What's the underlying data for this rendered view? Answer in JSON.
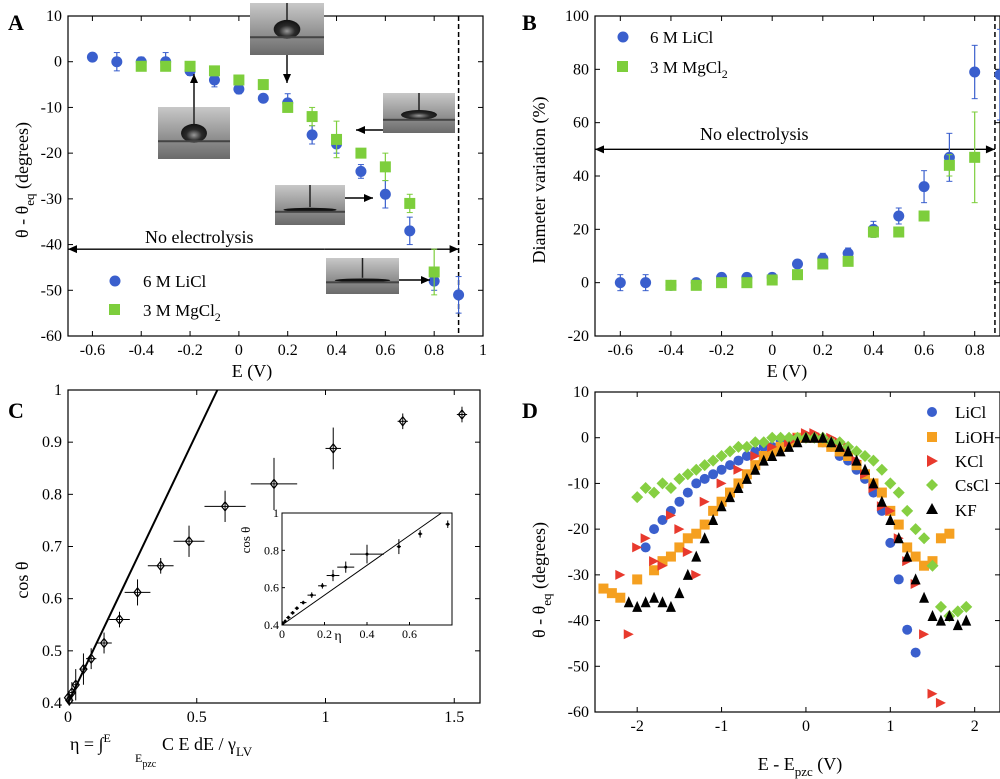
{
  "panels": {
    "A": {
      "letter": "A",
      "xlabel": "E (V)",
      "ylabel": "θ - θ",
      "ylabel_sub": "eq",
      "ylabel_unit": " (degrees)",
      "annotation": "No electrolysis",
      "legend": [
        "6 M LiCl",
        "3 M MgCl",
        "2"
      ]
    },
    "B": {
      "letter": "B",
      "xlabel": "E (V)",
      "ylabel": "Diameter variation (%)",
      "annotation": "No electrolysis",
      "legend": [
        "6 M LiCl",
        "3 M MgCl",
        "2"
      ]
    },
    "C": {
      "letter": "C",
      "xlabel": "η = ∫",
      "xlabel_sup": "E",
      "xlabel_sub": "E",
      "xlabel_subsub": "pzc",
      "xlabel_rest": " C E dE / γ",
      "xlabel_lv": "LV",
      "ylabel": "cos θ",
      "inset_xlabel": "η",
      "inset_ylabel": "cos θ"
    },
    "D": {
      "letter": "D",
      "xlabel": "E - E",
      "xlabel_sub": "pzc",
      "xlabel_unit": " (V)",
      "ylabel": "θ - θ",
      "ylabel_sub": "eq",
      "ylabel_unit": " (degrees)",
      "legend": [
        "LiCl",
        "LiOH",
        "KCl",
        "CsCl",
        "KF"
      ]
    }
  },
  "colors": {
    "blue": "#3a5fcd",
    "green": "#7dce3c",
    "orange": "#f5a020",
    "red": "#e8392d",
    "cscl": "#86cf42",
    "black": "#000000"
  },
  "chart_data": [
    {
      "id": "A",
      "type": "scatter",
      "xlabel": "E (V)",
      "ylabel": "θ - θeq (degrees)",
      "xlim": [
        -0.7,
        1
      ],
      "ylim": [
        -60,
        10
      ],
      "xticks": [
        "-0.6",
        "-0.4",
        "-0.2",
        "0",
        "0.2",
        "0.4",
        "0.6",
        "0.8",
        "1"
      ],
      "yticks": [
        "10",
        "0",
        "-10",
        "-20",
        "-30",
        "-40",
        "-50",
        "-60"
      ],
      "vline": 0.9,
      "hline_arrow": {
        "y": -41,
        "x": [
          -0.7,
          0.9
        ],
        "label": "No electrolysis"
      },
      "series": [
        {
          "name": "6 M LiCl",
          "marker": "circle",
          "color": "blue",
          "x": [
            -0.6,
            -0.5,
            -0.4,
            -0.3,
            -0.2,
            -0.1,
            0,
            0.1,
            0.2,
            0.3,
            0.4,
            0.5,
            0.6,
            0.7,
            0.8,
            0.9
          ],
          "y": [
            1,
            0,
            0,
            0,
            -2,
            -4,
            -6,
            -8,
            -9,
            -16,
            -18,
            -24,
            -29,
            -37,
            -48,
            -51
          ],
          "err": [
            0.5,
            2,
            1,
            2,
            1,
            1.5,
            1,
            0.5,
            2,
            2,
            2,
            1.5,
            3,
            3,
            2,
            4
          ]
        },
        {
          "name": "3 M MgCl2",
          "marker": "square",
          "color": "green",
          "x": [
            -0.4,
            -0.3,
            -0.2,
            -0.1,
            0,
            0.1,
            0.2,
            0.3,
            0.4,
            0.5,
            0.6,
            0.7,
            0.8
          ],
          "y": [
            -1,
            -1,
            -1,
            -2,
            -4,
            -5,
            -10,
            -12,
            -17,
            -20,
            -23,
            -31,
            -46
          ],
          "err": [
            0.5,
            0.5,
            0.5,
            0.5,
            0.5,
            0.5,
            1,
            2,
            4,
            1,
            3,
            2,
            5
          ]
        }
      ]
    },
    {
      "id": "B",
      "type": "scatter",
      "xlabel": "E (V)",
      "ylabel": "Diameter variation (%)",
      "xlim": [
        -0.7,
        0.9
      ],
      "ylim": [
        -20,
        100
      ],
      "xticks": [
        "-0.6",
        "-0.4",
        "-0.2",
        "0",
        "0.2",
        "0.4",
        "0.6",
        "0.8"
      ],
      "yticks": [
        "100",
        "80",
        "60",
        "40",
        "20",
        "0",
        "-20"
      ],
      "vline": 0.88,
      "hline_arrow": {
        "y": 50,
        "x": [
          -0.7,
          0.88
        ],
        "label": "No electrolysis"
      },
      "series": [
        {
          "name": "6 M LiCl",
          "marker": "circle",
          "color": "blue",
          "x": [
            -0.6,
            -0.5,
            -0.4,
            -0.3,
            -0.2,
            -0.1,
            0,
            0.1,
            0.2,
            0.3,
            0.4,
            0.5,
            0.6,
            0.7,
            0.8,
            0.9
          ],
          "y": [
            0,
            0,
            -1,
            0,
            2,
            2,
            2,
            7,
            9,
            11,
            20,
            25,
            36,
            47,
            79,
            78
          ],
          "err": [
            3,
            3,
            1,
            1,
            1,
            1,
            1,
            1,
            2,
            2,
            3,
            3,
            6,
            9,
            10,
            17
          ]
        },
        {
          "name": "3 M MgCl2",
          "marker": "square",
          "color": "green",
          "x": [
            -0.4,
            -0.3,
            -0.2,
            -0.1,
            0,
            0.1,
            0.2,
            0.3,
            0.4,
            0.5,
            0.6,
            0.7,
            0.8
          ],
          "y": [
            -1,
            -1,
            0,
            0,
            1,
            3,
            7,
            8,
            19,
            19,
            25,
            44,
            47
          ],
          "err": [
            0.5,
            0.5,
            0.5,
            0.5,
            0.5,
            0.5,
            1,
            1,
            2,
            1,
            1,
            4,
            17
          ]
        }
      ]
    },
    {
      "id": "C",
      "type": "scatter",
      "xlabel": "η = ∫ C E dE / γLV",
      "ylabel": "cos θ",
      "xlim": [
        0,
        1.6
      ],
      "ylim": [
        0.4,
        1
      ],
      "xticks": [
        "0",
        "0.5",
        "1",
        "1.5"
      ],
      "yticks": [
        "1",
        "0.9",
        "0.8",
        "0.7",
        "0.6",
        "0.5",
        "0.4"
      ],
      "line": {
        "x": [
          0,
          0.58
        ],
        "y": [
          0.4,
          1
        ]
      },
      "series": [
        {
          "name": "data",
          "marker": "diamond-open",
          "color": "black",
          "x": [
            0,
            0.005,
            0.015,
            0.03,
            0.06,
            0.09,
            0.14,
            0.2,
            0.27,
            0.36,
            0.47,
            0.61,
            0.8,
            1.03,
            1.3,
            1.53
          ],
          "y": [
            0.41,
            0.405,
            0.42,
            0.435,
            0.465,
            0.485,
            0.515,
            0.56,
            0.612,
            0.663,
            0.71,
            0.777,
            0.82,
            0.888,
            0.94,
            0.953
          ],
          "xerr": [
            0.005,
            0.005,
            0.01,
            0.01,
            0.015,
            0.02,
            0.03,
            0.04,
            0.05,
            0.05,
            0.06,
            0.08,
            0.09,
            0.03,
            0.02,
            0.02
          ],
          "yerr": [
            0.01,
            0.01,
            0.02,
            0.03,
            0.03,
            0.02,
            0.02,
            0.015,
            0.025,
            0.015,
            0.03,
            0.03,
            0.05,
            0.04,
            0.015,
            0.015
          ]
        }
      ],
      "inset": {
        "xlim": [
          0,
          0.8
        ],
        "ylim": [
          0.4,
          1
        ],
        "xticks": [
          "0",
          "0.2",
          "0.4",
          "0.6"
        ],
        "yticks": [
          "1",
          "0.8",
          "0.6",
          "0.4"
        ],
        "line": {
          "x": [
            0,
            0.75
          ],
          "y": [
            0.4,
            1
          ]
        },
        "x": [
          0.005,
          0.015,
          0.03,
          0.05,
          0.07,
          0.1,
          0.14,
          0.19,
          0.24,
          0.3,
          0.4,
          0.55,
          0.65,
          0.78
        ],
        "y": [
          0.41,
          0.42,
          0.44,
          0.465,
          0.49,
          0.52,
          0.56,
          0.61,
          0.665,
          0.71,
          0.78,
          0.82,
          0.888,
          0.94
        ],
        "xerr": [
          0.005,
          0.005,
          0.01,
          0.01,
          0.01,
          0.015,
          0.02,
          0.02,
          0.03,
          0.04,
          0.08,
          0.01,
          0.01,
          0.01
        ],
        "yerr": [
          0.01,
          0.01,
          0.01,
          0.01,
          0.01,
          0.01,
          0.015,
          0.015,
          0.03,
          0.03,
          0.05,
          0.04,
          0.02,
          0.02
        ]
      }
    },
    {
      "id": "D",
      "type": "scatter",
      "xlabel": "E - Epzc (V)",
      "ylabel": "θ - θeq (degrees)",
      "xlim": [
        -2.5,
        2.3
      ],
      "ylim": [
        -60,
        10
      ],
      "xticks": [
        "-2",
        "-1",
        "0",
        "1",
        "2"
      ],
      "yticks": [
        "10",
        "0",
        "-10",
        "-20",
        "-30",
        "-40",
        "-50",
        "-60"
      ],
      "series": [
        {
          "name": "LiCl",
          "marker": "circle",
          "color": "blue",
          "x": [
            -1.9,
            -1.8,
            -1.7,
            -1.6,
            -1.5,
            -1.4,
            -1.3,
            -1.2,
            -1.1,
            -1.0,
            -0.9,
            -0.8,
            -0.7,
            -0.6,
            -0.5,
            -0.4,
            -0.3,
            -0.2,
            -0.1,
            0,
            0.1,
            0.2,
            0.3,
            0.4,
            0.5,
            0.6,
            0.7,
            0.8,
            0.9,
            1.0,
            1.1,
            1.2,
            1.3
          ],
          "y": [
            -24,
            -20,
            -18,
            -16,
            -14,
            -12,
            -10,
            -9,
            -8,
            -7,
            -6,
            -5,
            -4,
            -3,
            -2,
            -2,
            -1,
            -1,
            0,
            0,
            0,
            -1,
            -2,
            -4,
            -5,
            -7,
            -9,
            -12,
            -16,
            -23,
            -31,
            -42,
            -47
          ]
        },
        {
          "name": "LiOH",
          "marker": "square",
          "color": "orange",
          "x": [
            -2.4,
            -2.3,
            -2.2,
            -2.0,
            -1.8,
            -1.7,
            -1.6,
            -1.5,
            -1.4,
            -1.3,
            -1.2,
            -1.1,
            -1.0,
            -0.9,
            -0.8,
            -0.7,
            -0.6,
            -0.5,
            -0.4,
            -0.3,
            -0.2,
            -0.1,
            0,
            0.1,
            0.2,
            0.3,
            0.4,
            0.5,
            0.6,
            0.7,
            0.8,
            0.9,
            1.0,
            1.1,
            1.2,
            1.3,
            1.4,
            1.5,
            1.6,
            1.7
          ],
          "y": [
            -33,
            -34,
            -35,
            -31,
            -29,
            -27,
            -26,
            -24,
            -22,
            -21,
            -19,
            -16,
            -14,
            -12,
            -10,
            -8,
            -6,
            -4,
            -3,
            -2,
            -1,
            0,
            0,
            0,
            -1,
            -2,
            -3,
            -4,
            -6,
            -8,
            -10,
            -12,
            -16,
            -19,
            -24,
            -26,
            -28,
            -27,
            -22,
            -21
          ]
        },
        {
          "name": "KCl",
          "marker": "triangle-right",
          "color": "red",
          "x": [
            -2.2,
            -2.1,
            -2.0,
            -1.9,
            -1.8,
            -1.7,
            -1.6,
            -1.5,
            -1.4,
            -1.3,
            -1.2,
            -1.0,
            -0.8,
            -0.6,
            -0.4,
            -0.2,
            -0.1,
            0,
            0.1,
            0.2,
            0.3,
            0.4,
            0.5,
            0.6,
            0.7,
            0.8,
            0.9,
            1.0,
            1.1,
            1.2,
            1.3,
            1.4,
            1.5,
            1.6
          ],
          "y": [
            -30,
            -43,
            -24,
            -22,
            -27,
            -28,
            -17,
            -20,
            -25,
            -30,
            -14,
            -10,
            -7,
            -4,
            -2,
            -1,
            0,
            1,
            1,
            0,
            0,
            -1,
            -2,
            -5,
            -8,
            -11,
            -15,
            -16,
            -22,
            -27,
            -32,
            -43,
            -56,
            -58
          ]
        },
        {
          "name": "CsCl",
          "marker": "diamond",
          "color": "cscl",
          "x": [
            -2.0,
            -1.9,
            -1.8,
            -1.7,
            -1.6,
            -1.5,
            -1.4,
            -1.3,
            -1.2,
            -1.1,
            -1.0,
            -0.9,
            -0.8,
            -0.7,
            -0.6,
            -0.5,
            -0.4,
            -0.3,
            -0.2,
            -0.1,
            0,
            0.1,
            0.2,
            0.3,
            0.4,
            0.5,
            0.6,
            0.7,
            0.8,
            0.9,
            1.0,
            1.1,
            1.2,
            1.3,
            1.4,
            1.5,
            1.6,
            1.7,
            1.8,
            1.9
          ],
          "y": [
            -13,
            -11,
            -12,
            -10,
            -11,
            -9,
            -8,
            -7,
            -6,
            -5,
            -4,
            -3,
            -2,
            -2,
            -1,
            -1,
            0,
            0,
            0,
            0,
            0,
            0,
            0,
            -1,
            -1,
            -2,
            -3,
            -4,
            -5,
            -7,
            -10,
            -12,
            -16,
            -20,
            -22,
            -28,
            -37,
            -39,
            -38,
            -37
          ]
        },
        {
          "name": "KF",
          "marker": "triangle-up",
          "color": "black",
          "x": [
            -2.1,
            -2.0,
            -1.9,
            -1.8,
            -1.7,
            -1.6,
            -1.5,
            -1.4,
            -1.3,
            -1.2,
            -1.1,
            -1.0,
            -0.9,
            -0.8,
            -0.7,
            -0.6,
            -0.5,
            -0.4,
            -0.3,
            -0.2,
            -0.1,
            0,
            0.1,
            0.2,
            0.3,
            0.4,
            0.5,
            0.6,
            0.7,
            0.8,
            0.9,
            1.0,
            1.1,
            1.2,
            1.3,
            1.4,
            1.5,
            1.6,
            1.7,
            1.8,
            1.9
          ],
          "y": [
            -36,
            -37,
            -36,
            -35,
            -36,
            -37,
            -34,
            -30,
            -26,
            -22,
            -18,
            -15,
            -13,
            -11,
            -9,
            -7,
            -5,
            -4,
            -3,
            -2,
            -1,
            0,
            0,
            0,
            -1,
            -2,
            -3,
            -5,
            -7,
            -10,
            -14,
            -18,
            -22,
            -26,
            -31,
            -35,
            -39,
            -40,
            -39,
            -41,
            -40
          ]
        }
      ]
    }
  ]
}
